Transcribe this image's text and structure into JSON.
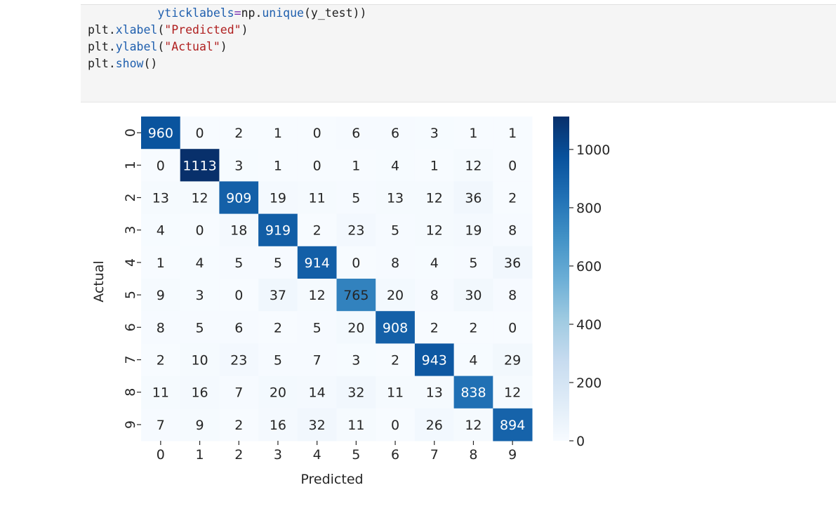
{
  "code": {
    "line1": {
      "indent": "          ",
      "arg": "yticklabels",
      "eq": "=",
      "obj": "np",
      "dot": ".",
      "fn": "unique",
      "rest": "(y_test))"
    },
    "line2": {
      "obj": "plt",
      "dot": ".",
      "fn": "xlabel",
      "open": "(",
      "str": "\"Predicted\"",
      "close": ")"
    },
    "line3": {
      "obj": "plt",
      "dot": ".",
      "fn": "ylabel",
      "open": "(",
      "str": "\"Actual\"",
      "close": ")"
    },
    "line4": {
      "obj": "plt",
      "dot": ".",
      "fn": "show",
      "rest": "()"
    }
  },
  "chart_data": {
    "type": "heatmap",
    "title": "",
    "xlabel": "Predicted",
    "ylabel": "Actual",
    "x_ticks": [
      "0",
      "1",
      "2",
      "3",
      "4",
      "5",
      "6",
      "7",
      "8",
      "9"
    ],
    "y_ticks": [
      "0",
      "1",
      "2",
      "3",
      "4",
      "5",
      "6",
      "7",
      "8",
      "9"
    ],
    "values": [
      [
        960,
        0,
        2,
        1,
        0,
        6,
        6,
        3,
        1,
        1
      ],
      [
        0,
        1113,
        3,
        1,
        0,
        1,
        4,
        1,
        12,
        0
      ],
      [
        13,
        12,
        909,
        19,
        11,
        5,
        13,
        12,
        36,
        2
      ],
      [
        4,
        0,
        18,
        919,
        2,
        23,
        5,
        12,
        19,
        8
      ],
      [
        1,
        4,
        5,
        5,
        914,
        0,
        8,
        4,
        5,
        36
      ],
      [
        9,
        3,
        0,
        37,
        12,
        765,
        20,
        8,
        30,
        8
      ],
      [
        8,
        5,
        6,
        2,
        5,
        20,
        908,
        2,
        2,
        0
      ],
      [
        2,
        10,
        23,
        5,
        7,
        3,
        2,
        943,
        4,
        29
      ],
      [
        11,
        16,
        7,
        20,
        14,
        32,
        11,
        13,
        838,
        12
      ],
      [
        7,
        9,
        2,
        16,
        32,
        11,
        0,
        26,
        12,
        894
      ]
    ],
    "colormap": "Blues",
    "color_range": [
      0,
      1113
    ],
    "colorbar_ticks": [
      "0",
      "200",
      "400",
      "600",
      "800",
      "1000"
    ],
    "colorbar_tick_values": [
      0,
      200,
      400,
      600,
      800,
      1000
    ],
    "annotations": true
  }
}
